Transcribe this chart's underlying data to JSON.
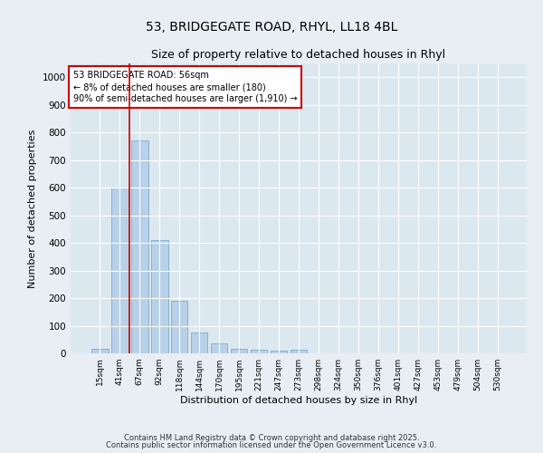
{
  "title_line1": "53, BRIDGEGATE ROAD, RHYL, LL18 4BL",
  "title_line2": "Size of property relative to detached houses in Rhyl",
  "xlabel": "Distribution of detached houses by size in Rhyl",
  "ylabel": "Number of detached properties",
  "categories": [
    "15sqm",
    "41sqm",
    "67sqm",
    "92sqm",
    "118sqm",
    "144sqm",
    "170sqm",
    "195sqm",
    "221sqm",
    "247sqm",
    "273sqm",
    "298sqm",
    "324sqm",
    "350sqm",
    "376sqm",
    "401sqm",
    "427sqm",
    "453sqm",
    "479sqm",
    "504sqm",
    "530sqm"
  ],
  "values": [
    15,
    600,
    770,
    410,
    190,
    75,
    35,
    18,
    12,
    10,
    12,
    0,
    0,
    0,
    0,
    0,
    0,
    0,
    0,
    0,
    0
  ],
  "bar_color": "#b8d0e8",
  "bar_edge_color": "#7aaac8",
  "vline_position": 1.5,
  "vline_color": "#cc0000",
  "annotation_text": "53 BRIDGEGATE ROAD: 56sqm\n← 8% of detached houses are smaller (180)\n90% of semi-detached houses are larger (1,910) →",
  "annotation_box_color": "#ffffff",
  "annotation_box_edge": "#cc0000",
  "ylim": [
    0,
    1050
  ],
  "yticks": [
    0,
    100,
    200,
    300,
    400,
    500,
    600,
    700,
    800,
    900,
    1000
  ],
  "footer_line1": "Contains HM Land Registry data © Crown copyright and database right 2025.",
  "footer_line2": "Contains public sector information licensed under the Open Government Licence v3.0.",
  "bg_color": "#e8eef4",
  "plot_bg_color": "#dce8f0"
}
